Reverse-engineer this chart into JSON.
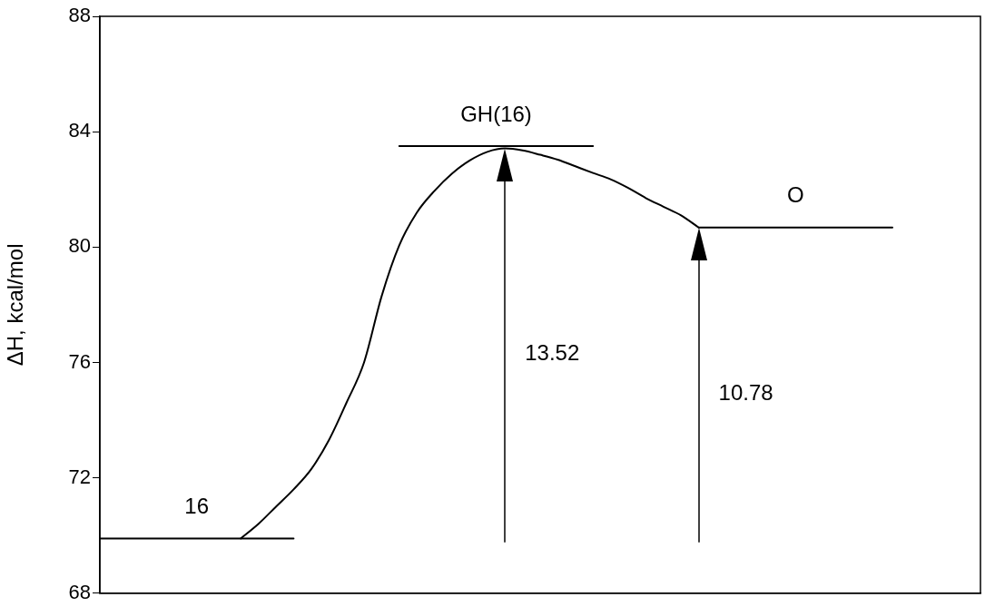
{
  "chart_data": {
    "type": "line",
    "ylabel": "ΔH, kcal/mol",
    "categories": [
      null,
      null,
      null,
      null,
      null,
      null,
      null,
      null,
      null,
      null,
      null,
      null,
      null,
      null,
      null,
      null,
      null,
      null,
      null,
      null,
      null,
      null,
      null,
      null,
      null,
      null,
      null,
      null,
      null,
      null,
      null,
      null,
      null,
      null,
      null,
      null,
      null,
      null,
      null,
      null,
      null,
      null,
      null,
      null,
      null,
      null,
      null,
      null,
      null,
      null,
      null
    ],
    "ylim": [
      68,
      88
    ],
    "yticks": [
      68,
      72,
      76,
      80,
      84,
      88
    ],
    "tick_labels": "y",
    "line_style": "solid",
    "series": [
      {
        "name": "16",
        "color": "#000000",
        "values": [
          69.9,
          69.9,
          69.9,
          69.9,
          69.9,
          69.9,
          69.9,
          69.9,
          69.9,
          69.9,
          69.9,
          69.9,
          null,
          null,
          null,
          null,
          null,
          null,
          null,
          null,
          null,
          null,
          null,
          null,
          null,
          null,
          null,
          null,
          null,
          null,
          null,
          null,
          null,
          null,
          null,
          null,
          null,
          null,
          null,
          null,
          null,
          null,
          null,
          null,
          null,
          null,
          null,
          null,
          null,
          null,
          null
        ]
      },
      {
        "color": "#000000",
        "values": [
          null,
          null,
          null,
          null,
          null,
          null,
          null,
          null,
          69.9,
          70.4,
          71.0,
          71.6,
          72.3,
          73.3,
          74.6,
          76.0,
          78.3,
          80.06,
          81.2,
          81.95,
          82.55,
          83.0,
          83.3,
          83.42,
          83.35,
          83.2,
          83.03,
          82.8,
          82.57,
          82.35,
          82.05,
          81.7,
          81.4,
          81.1,
          80.68,
          null,
          null,
          null,
          null,
          null,
          null,
          null,
          null,
          null,
          null,
          null,
          null,
          null,
          null,
          null,
          null
        ]
      },
      {
        "name": "GH(16)",
        "color": "#000000",
        "values": [
          null,
          null,
          null,
          null,
          null,
          null,
          null,
          null,
          null,
          null,
          null,
          null,
          null,
          null,
          null,
          null,
          null,
          83.5,
          83.5,
          83.5,
          83.5,
          83.5,
          83.5,
          83.5,
          83.5,
          83.5,
          83.5,
          83.5,
          83.5,
          null,
          null,
          null,
          null,
          null,
          null,
          null,
          null,
          null,
          null,
          null,
          null,
          null,
          null,
          null,
          null,
          null,
          null,
          null,
          null,
          null,
          null
        ]
      },
      {
        "name": "O",
        "color": "#000000",
        "values": [
          null,
          null,
          null,
          null,
          null,
          null,
          null,
          null,
          null,
          null,
          null,
          null,
          null,
          null,
          null,
          null,
          null,
          null,
          null,
          null,
          null,
          null,
          null,
          null,
          null,
          null,
          null,
          null,
          null,
          null,
          null,
          null,
          null,
          null,
          80.68,
          80.68,
          80.68,
          80.68,
          80.68,
          80.68,
          80.68,
          80.68,
          80.68,
          80.68,
          80.68,
          80.68,
          null,
          null,
          null,
          null,
          null
        ]
      }
    ],
    "annotations": [
      "13.52",
      "10.78"
    ]
  }
}
